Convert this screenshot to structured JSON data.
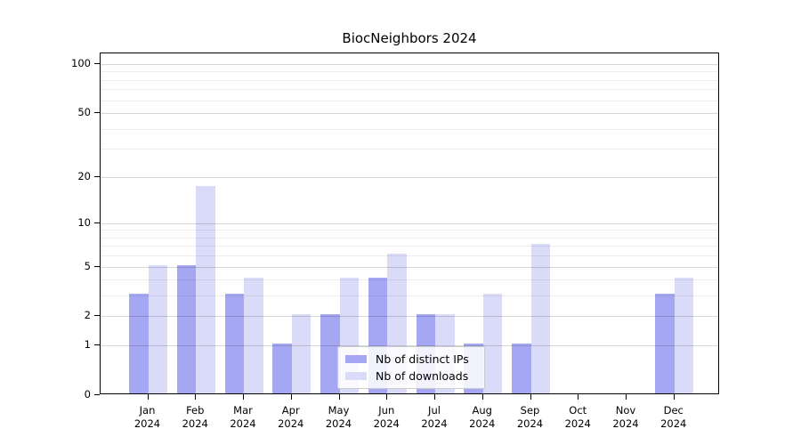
{
  "chart_data": {
    "type": "bar",
    "title": "BiocNeighbors 2024",
    "categories": [
      "Jan",
      "Feb",
      "Mar",
      "Apr",
      "May",
      "Jun",
      "Jul",
      "Aug",
      "Sep",
      "Oct",
      "Nov",
      "Dec"
    ],
    "year_label": "2024",
    "series": [
      {
        "name": "Nb of distinct IPs",
        "color": "#a5a7f2",
        "values": [
          3,
          5,
          3,
          1,
          2,
          4,
          2,
          1,
          1,
          0,
          0,
          3
        ]
      },
      {
        "name": "Nb of downloads",
        "color": "#dadbf9",
        "values": [
          5,
          17,
          4,
          2,
          4,
          6,
          2,
          3,
          7,
          0,
          0,
          4
        ]
      }
    ],
    "y_scale": "log1p",
    "y_ticks": [
      0,
      1,
      2,
      5,
      10,
      20,
      50,
      100
    ],
    "y_minor_ticks": [
      3,
      4,
      6,
      7,
      8,
      9,
      30,
      40,
      60,
      70,
      80,
      90
    ],
    "ylim": [
      0,
      115
    ],
    "grid": "horizontal, drawn over bars",
    "legend_position": "lower center inside plot"
  }
}
